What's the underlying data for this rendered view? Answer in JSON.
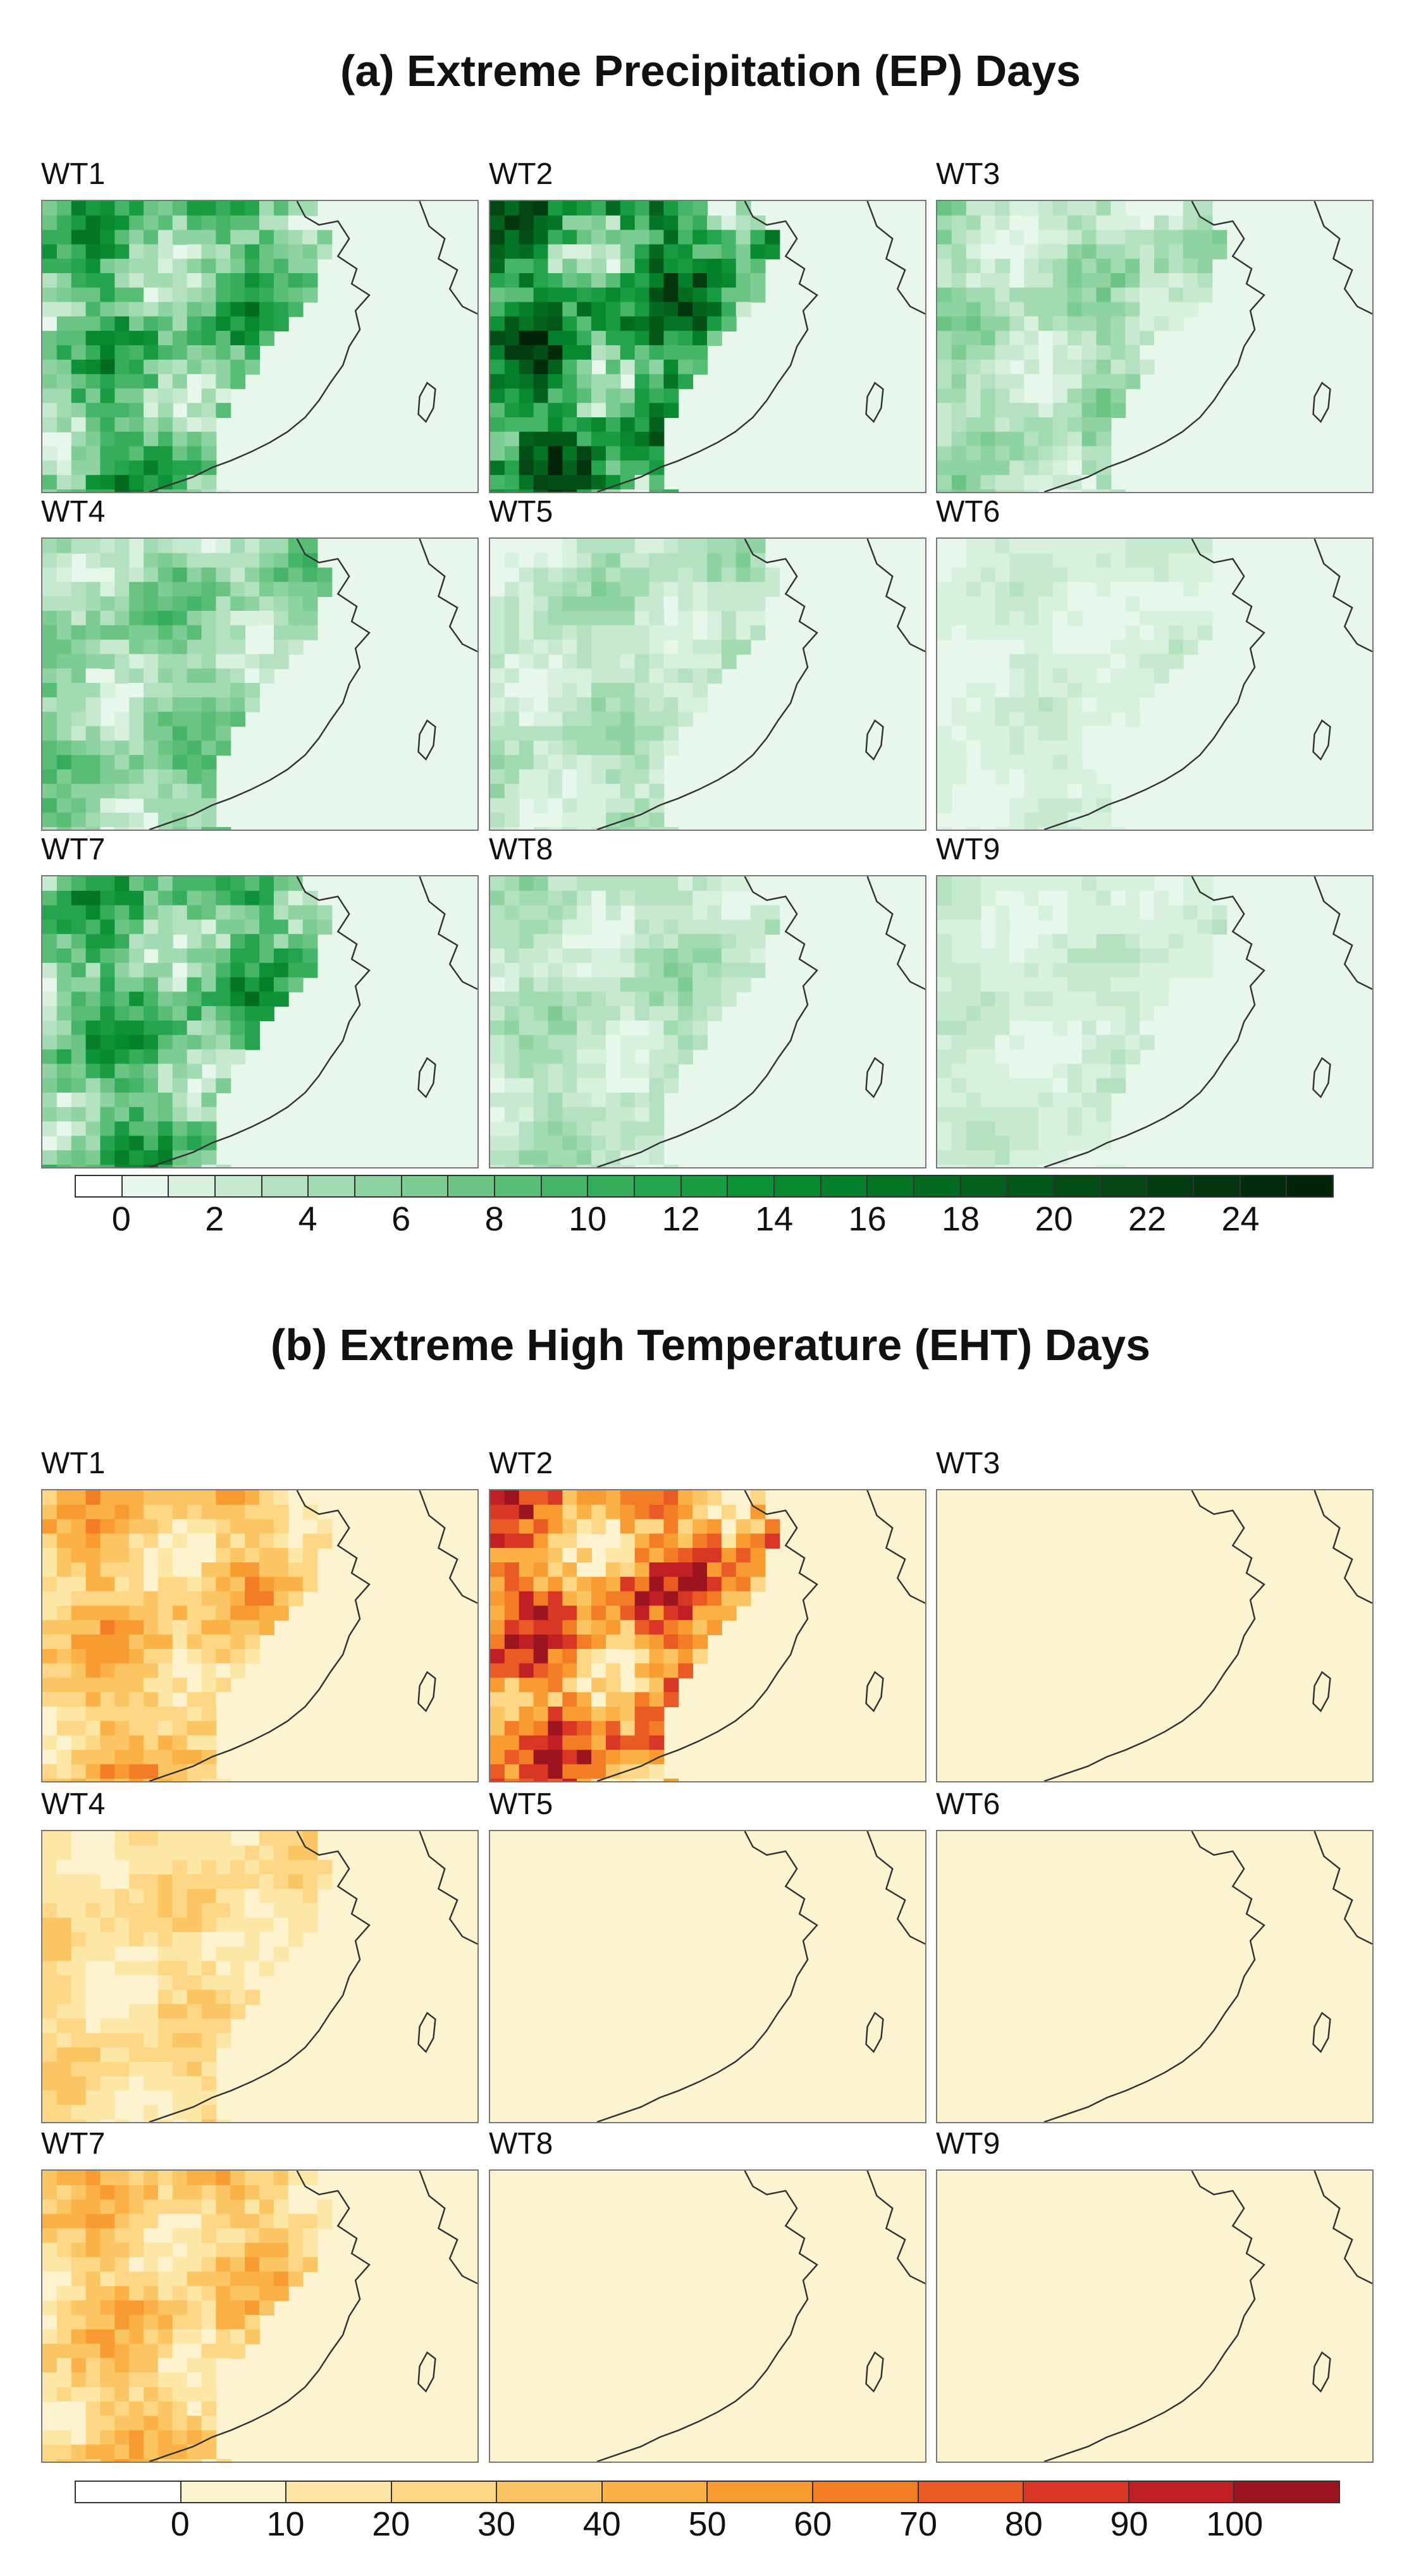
{
  "figure": {
    "title_a": "(a) Extreme Precipitation (EP) Days",
    "title_b": "(b) Extreme High Temperature (EHT) Days"
  },
  "chart_data": [
    {
      "type": "heatmap",
      "title": "(a) Extreme Precipitation (EP) Days",
      "panels": [
        "WT1",
        "WT2",
        "WT3",
        "WT4",
        "WT5",
        "WT6",
        "WT7",
        "WT8",
        "WT9"
      ],
      "panel_intensity": [
        0.55,
        0.85,
        0.25,
        0.35,
        0.2,
        0.1,
        0.55,
        0.2,
        0.12
      ],
      "colorbar": {
        "ticks": [
          "0",
          "2",
          "4",
          "6",
          "8",
          "10",
          "12",
          "14",
          "16",
          "18",
          "20",
          "22",
          "24"
        ],
        "range": [
          -1,
          26
        ],
        "levels": [
          -1,
          0,
          1,
          2,
          3,
          4,
          5,
          6,
          7,
          8,
          9,
          10,
          11,
          12,
          13,
          14,
          15,
          16,
          17,
          18,
          19,
          20,
          21,
          22,
          23,
          24,
          25,
          26
        ],
        "colors": [
          "#ffffff",
          "#e8f7ec",
          "#d8f0de",
          "#c6e9cf",
          "#b4e2c0",
          "#a2dbb1",
          "#8fd3a2",
          "#7dcc93",
          "#6bc484",
          "#59bd76",
          "#47b568",
          "#35ad5a",
          "#25a44d",
          "#189b41",
          "#0e9237",
          "#08892f",
          "#067f2a",
          "#057525",
          "#046b21",
          "#04611d",
          "#035719",
          "#034e16",
          "#034513",
          "#033c10",
          "#02340d",
          "#022c0a",
          "#022408"
        ]
      }
    },
    {
      "type": "heatmap",
      "title": "(b) Extreme High Temperature (EHT) Days",
      "panels": [
        "WT1",
        "WT2",
        "WT3",
        "WT4",
        "WT5",
        "WT6",
        "WT7",
        "WT8",
        "WT9"
      ],
      "panel_intensity": [
        0.5,
        0.9,
        0.0,
        0.3,
        0.06,
        0.0,
        0.45,
        0.0,
        0.0
      ],
      "colorbar": {
        "ticks": [
          "0",
          "10",
          "20",
          "30",
          "40",
          "50",
          "60",
          "70",
          "80",
          "90",
          "100"
        ],
        "range": [
          -10,
          110
        ],
        "levels": [
          -10,
          0,
          10,
          20,
          30,
          40,
          50,
          60,
          70,
          80,
          90,
          100,
          110
        ],
        "colors": [
          "#ffffff",
          "#fdf3cf",
          "#fde7a6",
          "#fdd785",
          "#fcc563",
          "#fbb146",
          "#f89b31",
          "#f37d27",
          "#e95a24",
          "#d93725",
          "#c01f26",
          "#9b1420"
        ]
      }
    }
  ]
}
